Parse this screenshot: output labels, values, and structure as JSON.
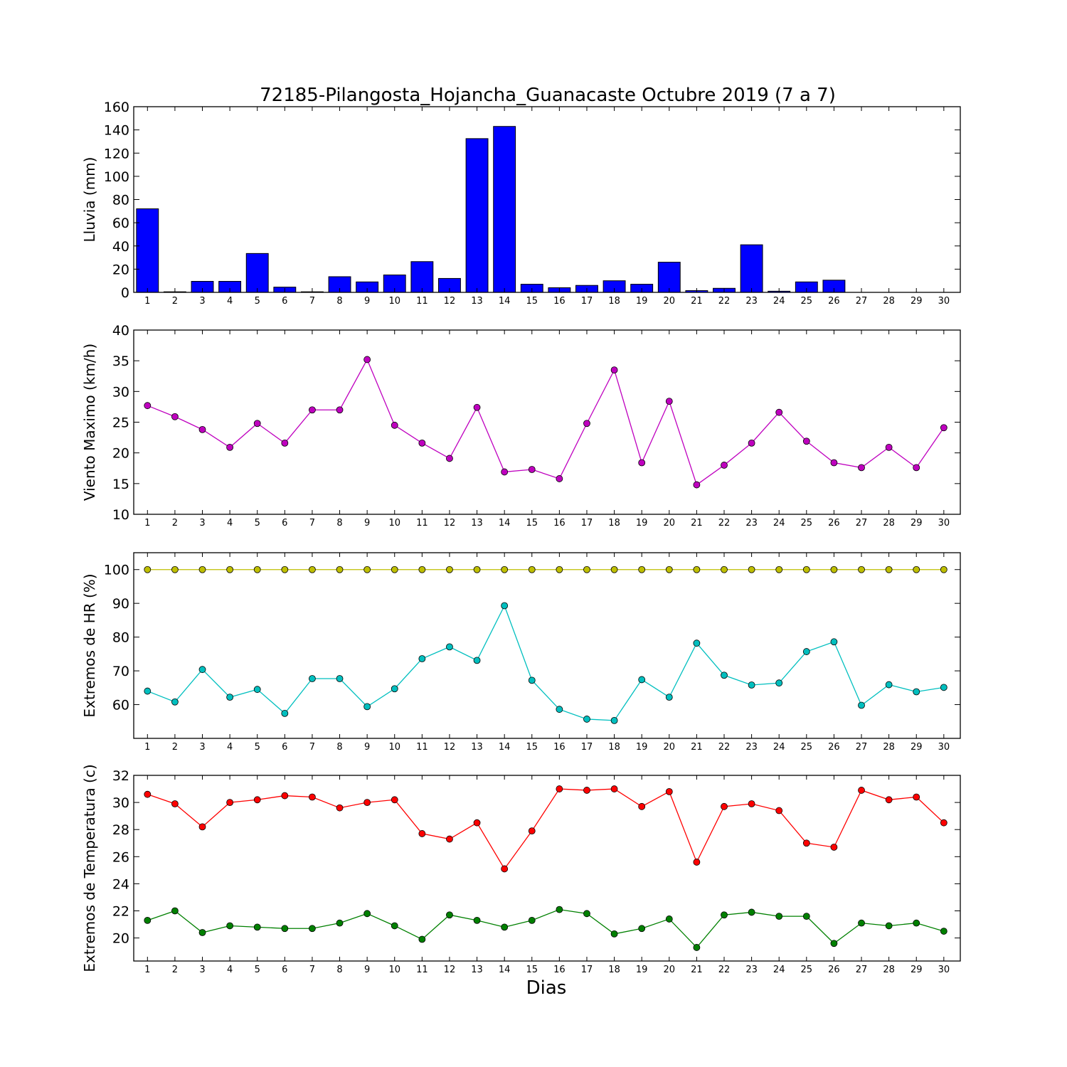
{
  "title": "72185-Pilangosta_Hojancha_Guanacaste Octubre 2019  (7 a 7)",
  "xlabel": "Dias",
  "chart_data": [
    {
      "type": "bar",
      "ylabel": "Lluvia (mm)",
      "ylim": [
        0,
        160
      ],
      "yticks": [
        0,
        20,
        40,
        60,
        80,
        100,
        120,
        140,
        160
      ],
      "x": [
        1,
        2,
        3,
        4,
        5,
        6,
        7,
        8,
        9,
        10,
        11,
        12,
        13,
        14,
        15,
        16,
        17,
        18,
        19,
        20,
        21,
        22,
        23,
        24,
        25,
        26,
        27,
        28,
        29,
        30
      ],
      "series": [
        {
          "color": "#0000ff",
          "values": [
            72.0,
            0.5,
            9.5,
            9.5,
            33.5,
            4.5,
            0.5,
            13.5,
            9.0,
            15.0,
            26.5,
            12.0,
            132.5,
            143.0,
            7.0,
            4.0,
            6.0,
            10.0,
            7.0,
            26.0,
            1.5,
            3.5,
            41.0,
            1.0,
            9.0,
            10.5,
            0,
            0,
            0,
            0
          ]
        }
      ]
    },
    {
      "type": "line",
      "ylabel": "Viento Maximo (km/h)",
      "ylim": [
        10,
        40
      ],
      "yticks": [
        10,
        15,
        20,
        25,
        30,
        35,
        40
      ],
      "x": [
        1,
        2,
        3,
        4,
        5,
        6,
        7,
        8,
        9,
        10,
        11,
        12,
        13,
        14,
        15,
        16,
        17,
        18,
        19,
        20,
        21,
        22,
        23,
        24,
        25,
        26,
        27,
        28,
        29,
        30
      ],
      "series": [
        {
          "color": "#bf00bf",
          "values": [
            27.7,
            25.9,
            23.8,
            20.9,
            24.8,
            21.6,
            27.0,
            27.0,
            35.2,
            24.5,
            21.6,
            19.1,
            27.4,
            16.9,
            17.3,
            15.8,
            24.8,
            33.5,
            18.4,
            28.4,
            14.8,
            18.0,
            21.6,
            26.6,
            21.9,
            18.4,
            17.6,
            20.9,
            17.6,
            24.1
          ]
        }
      ]
    },
    {
      "type": "line",
      "ylabel": "Extremos de HR (%)",
      "ylim": [
        50,
        105
      ],
      "yticks": [
        60,
        70,
        80,
        90,
        100
      ],
      "x": [
        1,
        2,
        3,
        4,
        5,
        6,
        7,
        8,
        9,
        10,
        11,
        12,
        13,
        14,
        15,
        16,
        17,
        18,
        19,
        20,
        21,
        22,
        23,
        24,
        25,
        26,
        27,
        28,
        29,
        30
      ],
      "series": [
        {
          "color": "#bfbf00",
          "values": [
            100,
            100,
            100,
            100,
            100,
            100,
            100,
            100,
            100,
            100,
            100,
            100,
            100,
            100,
            100,
            100,
            100,
            100,
            100,
            100,
            100,
            100,
            100,
            100,
            100,
            100,
            100,
            100,
            100,
            100
          ]
        },
        {
          "color": "#00bfbf",
          "values": [
            64.0,
            60.8,
            70.4,
            62.2,
            64.5,
            57.4,
            67.7,
            67.7,
            59.4,
            64.7,
            73.6,
            77.1,
            73.1,
            89.3,
            67.2,
            58.6,
            55.7,
            55.3,
            67.4,
            62.2,
            78.2,
            68.7,
            65.8,
            66.4,
            75.7,
            78.6,
            59.8,
            65.9,
            63.8,
            65.1
          ]
        }
      ]
    },
    {
      "type": "line",
      "ylabel": "Extremos de Temperatura (c)",
      "ylim": [
        18.3,
        32
      ],
      "yticks": [
        20,
        22,
        24,
        26,
        28,
        30,
        32
      ],
      "x": [
        1,
        2,
        3,
        4,
        5,
        6,
        7,
        8,
        9,
        10,
        11,
        12,
        13,
        14,
        15,
        16,
        17,
        18,
        19,
        20,
        21,
        22,
        23,
        24,
        25,
        26,
        27,
        28,
        29,
        30
      ],
      "series": [
        {
          "color": "#ff0000",
          "values": [
            30.6,
            29.9,
            28.2,
            30.0,
            30.2,
            30.5,
            30.4,
            29.6,
            30.0,
            30.2,
            27.7,
            27.3,
            28.5,
            25.1,
            27.9,
            31.0,
            30.9,
            31.0,
            29.7,
            30.8,
            25.6,
            29.7,
            29.9,
            29.4,
            27.0,
            26.7,
            30.9,
            30.2,
            30.4,
            28.5
          ]
        },
        {
          "color": "#008000",
          "values": [
            21.3,
            22.0,
            20.4,
            20.9,
            20.8,
            20.7,
            20.7,
            21.1,
            21.8,
            20.9,
            19.9,
            21.7,
            21.3,
            20.8,
            21.3,
            22.1,
            21.8,
            20.3,
            20.7,
            21.4,
            19.3,
            21.7,
            21.9,
            21.6,
            21.6,
            19.6,
            21.1,
            20.9,
            21.1,
            20.5
          ]
        }
      ]
    }
  ]
}
